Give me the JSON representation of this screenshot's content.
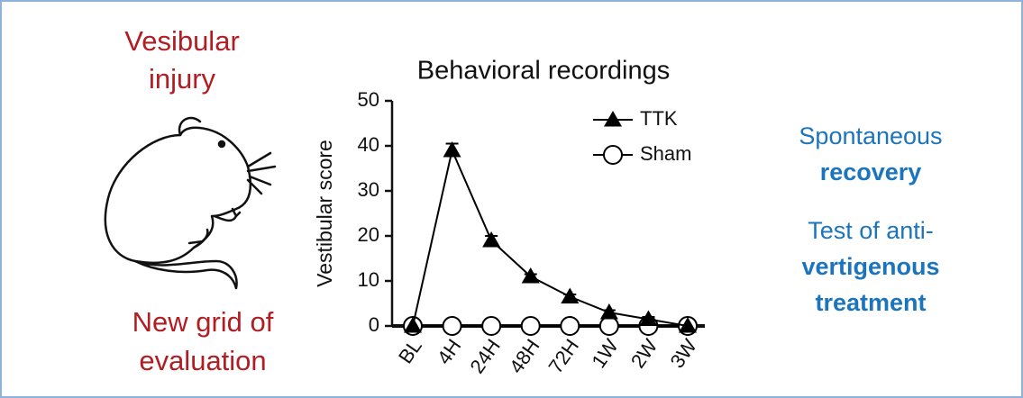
{
  "left_text": {
    "top": [
      "Vesibular",
      "injury"
    ],
    "bottom": [
      "New grid of",
      "evaluation"
    ]
  },
  "right_text": {
    "recovery": [
      "Spontaneous",
      "recovery"
    ],
    "treatment": [
      "Test of anti-",
      "vertigenous",
      "treatment"
    ]
  },
  "chart_data": {
    "type": "line",
    "title": "Behavioral recordings",
    "y_label": "Vestibular score",
    "categories": [
      "BL",
      "4H",
      "24H",
      "48H",
      "72H",
      "1W",
      "2W",
      "3W"
    ],
    "series": [
      {
        "name": "TTK",
        "color": "#000000",
        "marker": "triangle",
        "values": [
          0,
          39,
          19,
          11,
          6.5,
          3,
          1.5,
          0
        ],
        "errors": [
          0,
          1.5,
          1,
          0.5,
          0.5,
          0.5,
          0.5,
          0
        ]
      },
      {
        "name": "Sham",
        "color": "#000000",
        "marker": "circle",
        "values": [
          0,
          0,
          0,
          0,
          0,
          0,
          0,
          0
        ]
      }
    ],
    "ylim": [
      0,
      50
    ],
    "yticks": [
      0,
      10,
      20,
      30,
      40,
      50
    ],
    "grid": false,
    "legend": "upper right"
  }
}
